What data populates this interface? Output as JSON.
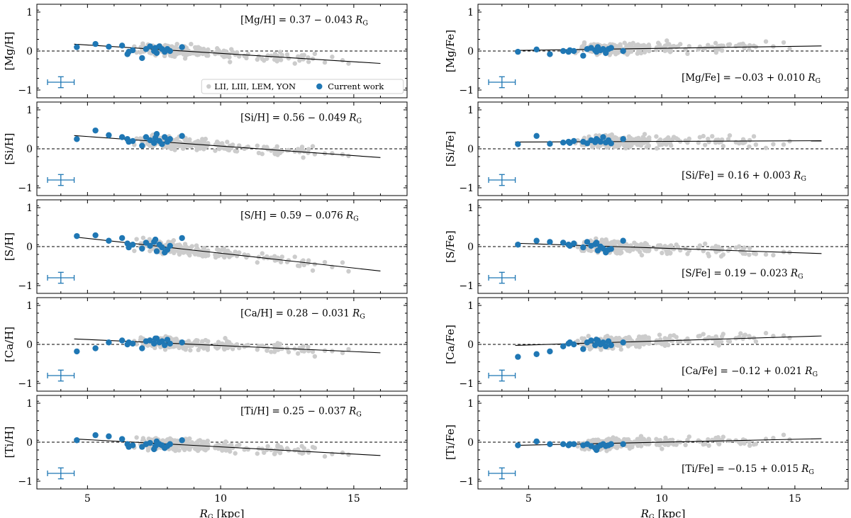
{
  "chart_data": {
    "type": "scatter",
    "title": "",
    "xlabel": "R_G [kpc]",
    "xlim": [
      3.1,
      17.0
    ],
    "ylim": [
      -1.2,
      1.2
    ],
    "xticks": [
      5,
      10,
      15
    ],
    "yticks": [
      -1,
      0,
      1
    ],
    "xtick_labels": [
      "5",
      "10",
      "15"
    ],
    "ytick_labels": [
      "−1",
      "0",
      "1"
    ],
    "legend": {
      "position": "lower-right of top-left panel",
      "entries": [
        {
          "label": "LII, LIII, LEM, YON",
          "color": "#cccccc"
        },
        {
          "label": "Current work",
          "color": "#1f77b4"
        }
      ]
    },
    "colors": {
      "literature": "#cccccc",
      "current": "#1f77b4",
      "fit": "#000000",
      "errorbar": "#1f77b4"
    },
    "current_work_RG": [
      4.6,
      5.3,
      5.8,
      6.3,
      6.5,
      6.55,
      6.7,
      7.05,
      7.2,
      7.35,
      7.5,
      7.55,
      7.6,
      7.7,
      7.8,
      7.9,
      8.0,
      8.1,
      8.55
    ],
    "panels": [
      {
        "ylabel": "[Mg/H]",
        "equation": "[Mg/H] = 0.37 − 0.043 R",
        "intercept": 0.37,
        "slope": -0.043,
        "fit_xrange": [
          4.5,
          16
        ],
        "errorbar": {
          "x": 4.0,
          "y": -0.8,
          "xerr": 0.5,
          "yerr": 0.14
        },
        "current_y": [
          0.1,
          0.18,
          0.11,
          0.14,
          -0.08,
          -0.02,
          0.02,
          -0.18,
          0.05,
          0.12,
          0.0,
          0.08,
          -0.05,
          0.12,
          0.05,
          -0.02,
          0.05,
          0.0,
          0.1
        ]
      },
      {
        "ylabel": "[Mg/Fe]",
        "equation": "[Mg/Fe] = −0.03 + 0.010 R",
        "intercept": -0.03,
        "slope": 0.01,
        "fit_xrange": [
          4.5,
          16
        ],
        "errorbar": {
          "x": 4.0,
          "y": -0.8,
          "xerr": 0.5,
          "yerr": 0.14
        },
        "current_y": [
          -0.02,
          0.04,
          -0.08,
          0.0,
          -0.02,
          0.02,
          0.0,
          -0.12,
          0.05,
          0.08,
          0.02,
          -0.02,
          0.1,
          0.02,
          0.05,
          -0.05,
          0.05,
          0.08,
          0.0
        ]
      },
      {
        "ylabel": "[Si/H]",
        "equation": "[Si/H] = 0.56 − 0.049 R",
        "intercept": 0.56,
        "slope": -0.049,
        "fit_xrange": [
          4.5,
          16
        ],
        "errorbar": {
          "x": 4.0,
          "y": -0.8,
          "xerr": 0.5,
          "yerr": 0.14
        },
        "current_y": [
          0.25,
          0.47,
          0.35,
          0.3,
          0.25,
          0.18,
          0.2,
          0.08,
          0.3,
          0.22,
          0.15,
          0.28,
          0.38,
          0.2,
          0.12,
          0.3,
          0.18,
          0.25,
          0.33
        ]
      },
      {
        "ylabel": "[Si/Fe]",
        "equation": "[Si/Fe] = 0.16 + 0.003 R",
        "intercept": 0.16,
        "slope": 0.003,
        "fit_xrange": [
          4.5,
          16
        ],
        "errorbar": {
          "x": 4.0,
          "y": -0.8,
          "xerr": 0.5,
          "yerr": 0.14
        },
        "current_y": [
          0.12,
          0.33,
          0.13,
          0.16,
          0.18,
          0.15,
          0.2,
          0.18,
          0.14,
          0.22,
          0.17,
          0.25,
          0.22,
          0.18,
          0.3,
          0.16,
          0.22,
          0.14,
          0.25
        ]
      },
      {
        "ylabel": "[S/H]",
        "equation": "[S/H] = 0.59 − 0.076 R",
        "intercept": 0.59,
        "slope": -0.076,
        "fit_xrange": [
          4.5,
          16
        ],
        "errorbar": {
          "x": 4.0,
          "y": -0.8,
          "xerr": 0.5,
          "yerr": 0.14
        },
        "current_y": [
          0.27,
          0.29,
          0.15,
          0.22,
          0.08,
          -0.02,
          0.05,
          -0.05,
          0.1,
          0.02,
          0.12,
          0.18,
          -0.12,
          0.05,
          -0.02,
          -0.15,
          -0.08,
          0.02,
          0.22
        ]
      },
      {
        "ylabel": "[S/Fe]",
        "equation": "[S/Fe] = 0.19 − 0.023 R",
        "intercept": 0.19,
        "slope": -0.023,
        "fit_xrange": [
          4.5,
          16
        ],
        "errorbar": {
          "x": 4.0,
          "y": -0.8,
          "xerr": 0.5,
          "yerr": 0.14
        },
        "current_y": [
          0.05,
          0.15,
          0.12,
          0.1,
          0.05,
          0.02,
          0.08,
          -0.02,
          0.12,
          0.02,
          0.06,
          0.1,
          -0.1,
          0.0,
          -0.05,
          -0.15,
          -0.08,
          -0.06,
          0.15
        ]
      },
      {
        "ylabel": "[Ca/H]",
        "equation": "[Ca/H] = 0.28 − 0.031 R",
        "intercept": 0.28,
        "slope": -0.031,
        "fit_xrange": [
          4.5,
          16
        ],
        "errorbar": {
          "x": 4.0,
          "y": -0.8,
          "xerr": 0.5,
          "yerr": 0.14
        },
        "current_y": [
          -0.18,
          -0.1,
          0.05,
          0.1,
          0.0,
          0.05,
          0.02,
          -0.1,
          0.08,
          0.1,
          0.02,
          0.15,
          0.15,
          0.05,
          0.08,
          -0.02,
          0.12,
          0.02,
          0.05
        ]
      },
      {
        "ylabel": "[Ca/Fe]",
        "equation": "[Ca/Fe] = −0.12 + 0.021 R",
        "intercept": -0.12,
        "slope": 0.021,
        "fit_xrange": [
          4.5,
          16
        ],
        "errorbar": {
          "x": 4.0,
          "y": -0.8,
          "xerr": 0.5,
          "yerr": 0.14
        },
        "current_y": [
          -0.32,
          -0.25,
          -0.18,
          -0.05,
          0.02,
          0.05,
          0.0,
          -0.12,
          0.05,
          0.1,
          -0.02,
          0.12,
          0.1,
          0.0,
          0.05,
          -0.05,
          0.08,
          -0.02,
          0.05
        ]
      },
      {
        "ylabel": "[Ti/H]",
        "equation": "[Ti/H] = 0.25 − 0.037 R",
        "intercept": 0.25,
        "slope": -0.037,
        "fit_xrange": [
          4.5,
          16
        ],
        "errorbar": {
          "x": 4.0,
          "y": -0.8,
          "xerr": 0.5,
          "yerr": 0.14
        },
        "current_y": [
          0.05,
          0.18,
          0.15,
          0.08,
          -0.05,
          -0.12,
          -0.08,
          -0.12,
          -0.05,
          -0.02,
          -0.18,
          -0.1,
          0.02,
          -0.05,
          -0.08,
          -0.15,
          -0.1,
          -0.05,
          0.05
        ]
      },
      {
        "ylabel": "[Ti/Fe]",
        "equation": "[Ti/Fe] = −0.15 + 0.015 R",
        "intercept": -0.15,
        "slope": 0.015,
        "fit_xrange": [
          4.5,
          16
        ],
        "errorbar": {
          "x": 4.0,
          "y": -0.8,
          "xerr": 0.5,
          "yerr": 0.14
        },
        "current_y": [
          -0.08,
          0.02,
          -0.05,
          -0.05,
          -0.08,
          -0.05,
          -0.05,
          -0.08,
          -0.05,
          -0.1,
          -0.15,
          -0.2,
          -0.12,
          -0.08,
          -0.05,
          -0.1,
          -0.08,
          -0.05,
          -0.05
        ]
      }
    ]
  }
}
